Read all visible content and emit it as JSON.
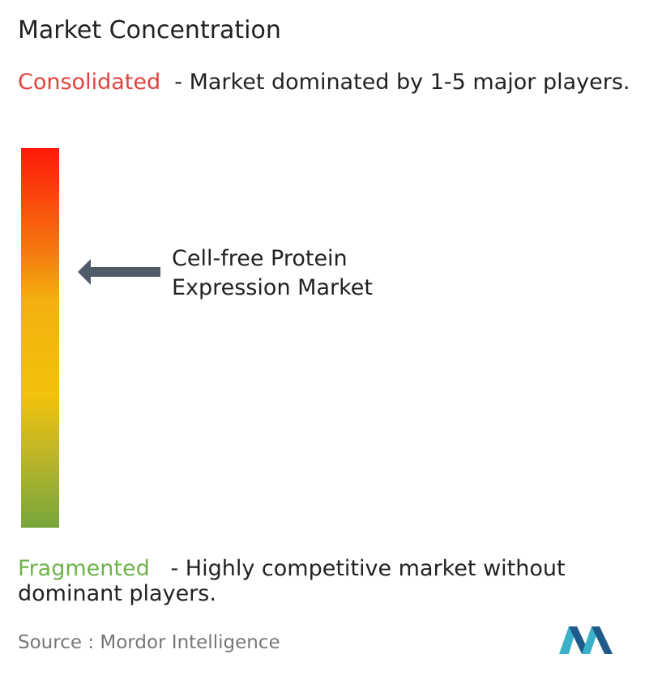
{
  "title": "Market Concentration",
  "consolidated": {
    "label": "Consolidated",
    "description": "- Market dominated by 1-5 major players."
  },
  "marker": {
    "lines": [
      "Cell-free Protein",
      "Expression Market"
    ]
  },
  "fragmented": {
    "label": "Fragmented",
    "description": "- Highly competitive market without dominant players."
  },
  "source": {
    "label": "Source :",
    "name": "Mordor Intelligence"
  }
}
